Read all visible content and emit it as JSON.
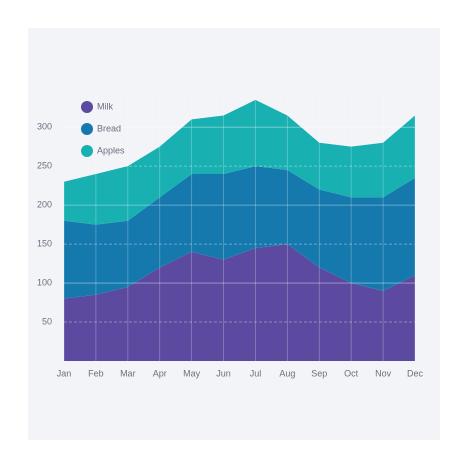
{
  "chart_data": {
    "type": "stacked-area",
    "categories": [
      "Jan",
      "Feb",
      "Mar",
      "Apr",
      "May",
      "Jun",
      "Jul",
      "Aug",
      "Sep",
      "Oct",
      "Nov",
      "Dec"
    ],
    "series": [
      {
        "name": "Milk",
        "color": "#5b4a9f",
        "values": [
          80,
          85,
          95,
          120,
          140,
          130,
          145,
          150,
          120,
          100,
          90,
          110
        ]
      },
      {
        "name": "Bread",
        "color": "#1679ae",
        "values": [
          100,
          90,
          85,
          90,
          100,
          110,
          105,
          95,
          100,
          110,
          120,
          125
        ]
      },
      {
        "name": "Apples",
        "color": "#19b0b2",
        "values": [
          50,
          65,
          70,
          65,
          70,
          75,
          85,
          70,
          60,
          65,
          70,
          80
        ]
      }
    ],
    "ylim": [
      0,
      340
    ],
    "yticks": [
      50,
      100,
      150,
      200,
      250,
      300
    ],
    "grid": true,
    "legend": "top-left"
  }
}
